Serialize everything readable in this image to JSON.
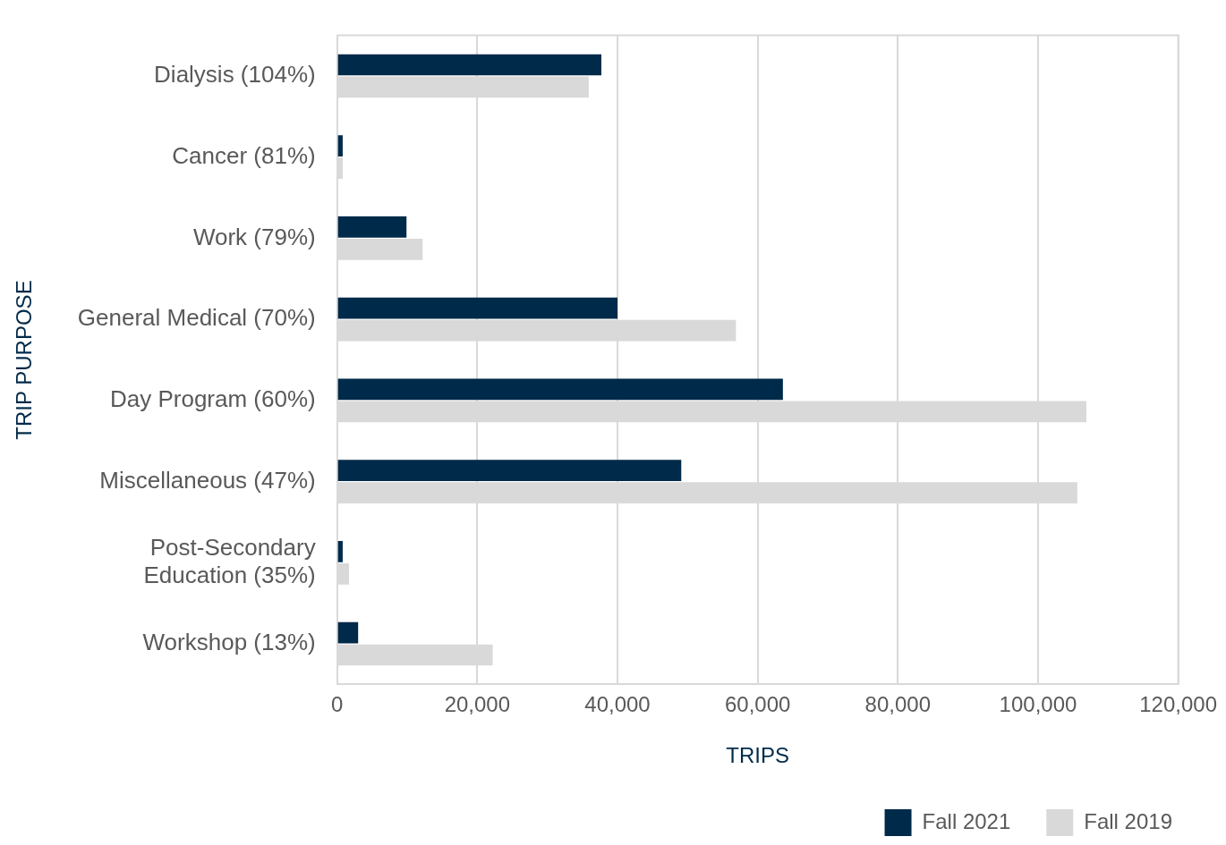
{
  "chart_data": {
    "type": "bar",
    "orientation": "horizontal",
    "ylabel": "TRIP PURPOSE",
    "xlabel": "TRIPS",
    "categories": [
      "Dialysis (104%)",
      "Cancer (81%)",
      "Work (79%)",
      "General Medical (70%)",
      "Day Program (60%)",
      "Miscellaneous (47%)",
      "Post-Secondary Education (35%)",
      "Workshop (13%)"
    ],
    "series": [
      {
        "name": "Fall 2021",
        "color": "#002a4a",
        "values": [
          37700,
          800,
          9900,
          40000,
          63600,
          49100,
          800,
          3000
        ]
      },
      {
        "name": "Fall 2019",
        "color": "#d9d9d9",
        "values": [
          35900,
          800,
          12200,
          56900,
          106900,
          105600,
          1700,
          22200
        ]
      }
    ],
    "xlim": [
      0,
      120000
    ],
    "xticks": [
      {
        "value": 0,
        "label": "0"
      },
      {
        "value": 20000,
        "label": "20,000"
      },
      {
        "value": 40000,
        "label": "40,000"
      },
      {
        "value": 60000,
        "label": "60,000"
      },
      {
        "value": 80000,
        "label": "80,000"
      },
      {
        "value": 100000,
        "label": "100,000"
      },
      {
        "value": 120000,
        "label": "120,000"
      }
    ],
    "grid": "x",
    "legend": "bottom right"
  }
}
